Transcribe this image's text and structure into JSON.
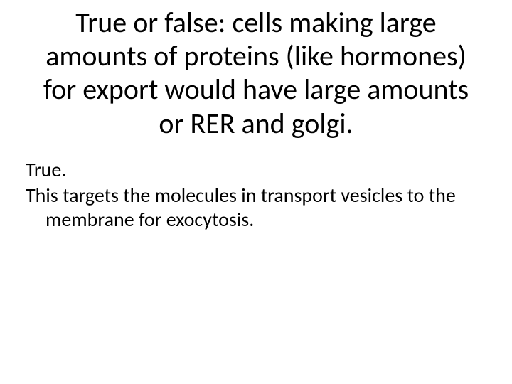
{
  "slide": {
    "title": "True or false:  cells making large amounts of proteins (like hormones) for export would have large amounts or RER and golgi.",
    "answer_line": "True.",
    "explanation": "This targets the molecules  in transport vesicles to the membrane for exocytosis."
  },
  "style": {
    "background_color": "#ffffff",
    "text_color": "#000000",
    "title_fontsize": 40,
    "body_fontsize": 28,
    "font_family": "Calibri"
  }
}
